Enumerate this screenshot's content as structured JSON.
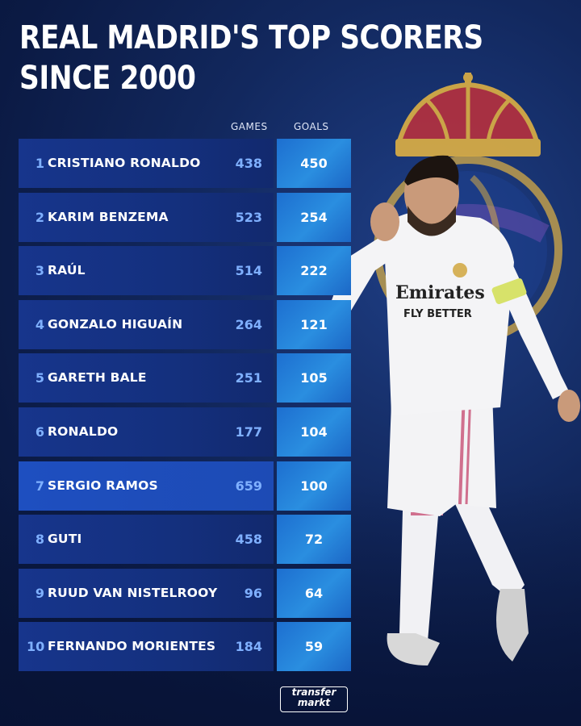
{
  "title_line1": "REAL MADRID'S TOP SCORERS",
  "title_line2": "SINCE 2000",
  "columns": {
    "games": "GAMES",
    "goals": "GOALS"
  },
  "rows": [
    {
      "rank": "1",
      "name": "CRISTIANO RONALDO",
      "games": "438",
      "goals": "450"
    },
    {
      "rank": "2",
      "name": "KARIM BENZEMA",
      "games": "523",
      "goals": "254"
    },
    {
      "rank": "3",
      "name": "RAÚL",
      "games": "514",
      "goals": "222"
    },
    {
      "rank": "4",
      "name": "GONZALO HIGUAÍN",
      "games": "264",
      "goals": "121"
    },
    {
      "rank": "5",
      "name": "GARETH BALE",
      "games": "251",
      "goals": "105"
    },
    {
      "rank": "6",
      "name": "RONALDO",
      "games": "177",
      "goals": "104"
    },
    {
      "rank": "7",
      "name": "SERGIO RAMOS",
      "games": "659",
      "goals": "100",
      "highlight": true
    },
    {
      "rank": "8",
      "name": "GUTI",
      "games": "458",
      "goals": "72"
    },
    {
      "rank": "9",
      "name": "RUUD VAN NISTELROOY",
      "games": "96",
      "goals": "64"
    },
    {
      "rank": "10",
      "name": "FERNANDO MORIENTES",
      "games": "184",
      "goals": "59"
    }
  ],
  "player_shirt": {
    "sponsor_line1": "Emirates",
    "sponsor_line2": "FLY BETTER"
  },
  "logo": {
    "line1": "transfer",
    "line2": "markt"
  },
  "colors": {
    "background": "#12285e",
    "row_left": "#17358c",
    "row_right": "#2a8ee0",
    "accent_text": "#7fb0ff"
  }
}
